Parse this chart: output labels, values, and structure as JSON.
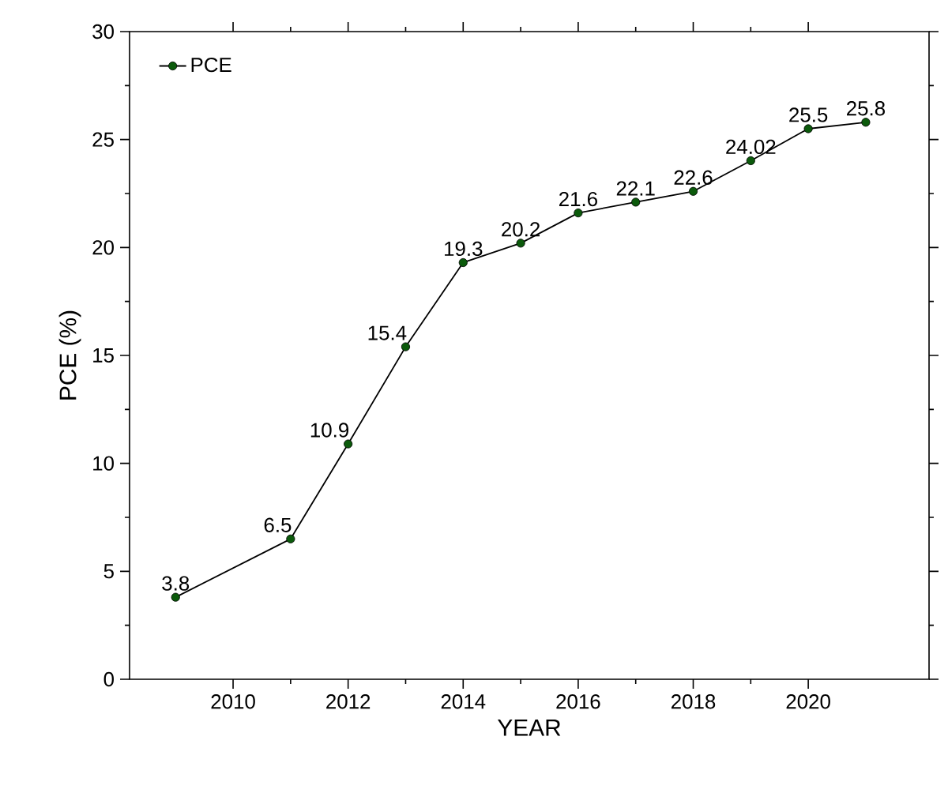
{
  "chart_data": {
    "type": "line",
    "xlabel": "YEAR",
    "ylabel": "PCE (%)",
    "x": [
      2009,
      2011,
      2012,
      2013,
      2014,
      2015,
      2016,
      2017,
      2018,
      2019,
      2020,
      2021
    ],
    "series": [
      {
        "name": "PCE",
        "color": "#0b5a0b",
        "values": [
          3.8,
          6.5,
          10.9,
          15.4,
          19.3,
          20.2,
          21.6,
          22.1,
          22.6,
          24.02,
          25.5,
          25.8
        ]
      }
    ],
    "xlim": [
      2008.2,
      2022.1
    ],
    "xticks": [
      2010,
      2012,
      2014,
      2016,
      2018,
      2020
    ],
    "ylim": [
      0,
      30
    ],
    "yticks": [
      0,
      5,
      10,
      15,
      20,
      25,
      30
    ],
    "data_labels": true,
    "legend": "top left",
    "marker": "circle",
    "line_style": "solid",
    "grid": false
  }
}
